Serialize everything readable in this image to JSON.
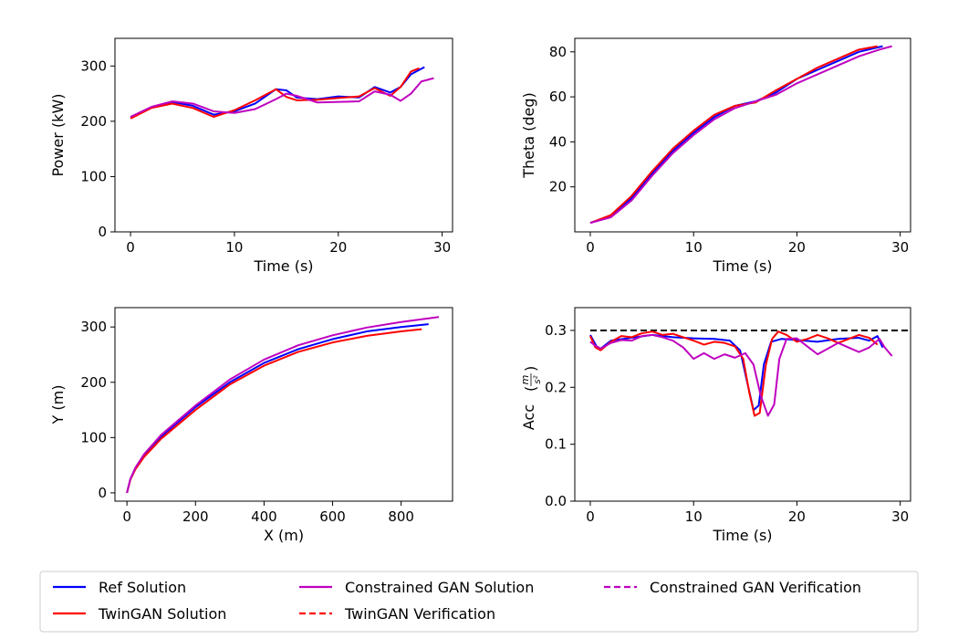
{
  "colors": {
    "ref": "#0000ff",
    "twingan": "#ff0000",
    "cgan": "#bf00bf",
    "limit": "#000000"
  },
  "legend": {
    "placement": "bottom",
    "items": [
      {
        "label": "Ref Solution",
        "color": "#0000ff",
        "dash": false
      },
      {
        "label": "Constrained GAN Solution",
        "color": "#bf00bf",
        "dash": false
      },
      {
        "label": "Constrained GAN Verification",
        "color": "#bf00bf",
        "dash": true
      },
      {
        "label": "TwinGAN Solution",
        "color": "#ff0000",
        "dash": false
      },
      {
        "label": "TwinGAN Verification",
        "color": "#ff0000",
        "dash": true
      }
    ]
  },
  "chart_data": [
    {
      "type": "line",
      "xlabel": "Time (s)",
      "ylabel": "Power (kW)",
      "xlim": [
        -1.5,
        31
      ],
      "ylim": [
        0,
        350
      ],
      "xticks": [
        0,
        10,
        20,
        30
      ],
      "yticks": [
        0,
        100,
        200,
        300
      ],
      "series": [
        {
          "color": "#0000ff",
          "dash": false,
          "points": [
            [
              0,
              207
            ],
            [
              2,
              225
            ],
            [
              4,
              235
            ],
            [
              6,
              228
            ],
            [
              8,
              212
            ],
            [
              10,
              218
            ],
            [
              12,
              232
            ],
            [
              14,
              258
            ],
            [
              15,
              256
            ],
            [
              16,
              243
            ],
            [
              18,
              240
            ],
            [
              20,
              245
            ],
            [
              22,
              243
            ],
            [
              23.5,
              262
            ],
            [
              25,
              252
            ],
            [
              26,
              262
            ],
            [
              27,
              285
            ],
            [
              28.3,
              298
            ]
          ]
        },
        {
          "color": "#ff0000",
          "dash": false,
          "points": [
            [
              0,
              205
            ],
            [
              2,
              224
            ],
            [
              4,
              232
            ],
            [
              6,
              224
            ],
            [
              8,
              208
            ],
            [
              10,
              220
            ],
            [
              12,
              238
            ],
            [
              14,
              258
            ],
            [
              15,
              244
            ],
            [
              16,
              238
            ],
            [
              18,
              239
            ],
            [
              20,
              242
            ],
            [
              22,
              245
            ],
            [
              23.5,
              260
            ],
            [
              25,
              246
            ],
            [
              26,
              262
            ],
            [
              27,
              290
            ],
            [
              27.8,
              296
            ]
          ]
        },
        {
          "color": "#bf00bf",
          "dash": false,
          "points": [
            [
              0,
              208
            ],
            [
              2,
              226
            ],
            [
              4,
              236
            ],
            [
              6,
              232
            ],
            [
              8,
              218
            ],
            [
              10,
              215
            ],
            [
              12,
              222
            ],
            [
              14,
              240
            ],
            [
              15,
              250
            ],
            [
              16,
              246
            ],
            [
              18,
              234
            ],
            [
              20,
              235
            ],
            [
              22,
              236
            ],
            [
              23.5,
              254
            ],
            [
              25,
              248
            ],
            [
              26,
              237
            ],
            [
              27,
              250
            ],
            [
              28,
              272
            ],
            [
              29.2,
              278
            ]
          ]
        }
      ]
    },
    {
      "type": "line",
      "xlabel": "Time (s)",
      "ylabel": "Theta (deg)",
      "xlim": [
        -1.5,
        31
      ],
      "ylim": [
        0,
        86
      ],
      "xticks": [
        0,
        10,
        20,
        30
      ],
      "yticks": [
        20,
        40,
        60,
        80
      ],
      "series": [
        {
          "color": "#0000ff",
          "dash": false,
          "points": [
            [
              0,
              4
            ],
            [
              2,
              7
            ],
            [
              4,
              15
            ],
            [
              6,
              26
            ],
            [
              8,
              36
            ],
            [
              10,
              44
            ],
            [
              12,
              51
            ],
            [
              14,
              56
            ],
            [
              16,
              58
            ],
            [
              18,
              62
            ],
            [
              20,
              68
            ],
            [
              22,
              72
            ],
            [
              24,
              76
            ],
            [
              26,
              80
            ],
            [
              28.3,
              82.5
            ]
          ]
        },
        {
          "color": "#ff0000",
          "dash": false,
          "points": [
            [
              0,
              4
            ],
            [
              2,
              7.5
            ],
            [
              4,
              16
            ],
            [
              6,
              27
            ],
            [
              8,
              37
            ],
            [
              10,
              45
            ],
            [
              12,
              52
            ],
            [
              14,
              56
            ],
            [
              16,
              57.5
            ],
            [
              18,
              63
            ],
            [
              20,
              68
            ],
            [
              22,
              73
            ],
            [
              24,
              77
            ],
            [
              26,
              81
            ],
            [
              27.8,
              82.5
            ]
          ]
        },
        {
          "color": "#bf00bf",
          "dash": false,
          "points": [
            [
              0,
              4
            ],
            [
              2,
              6.5
            ],
            [
              4,
              14
            ],
            [
              6,
              25
            ],
            [
              8,
              35
            ],
            [
              10,
              43
            ],
            [
              12,
              50
            ],
            [
              14,
              55
            ],
            [
              16,
              58
            ],
            [
              18,
              61
            ],
            [
              20,
              66
            ],
            [
              22,
              70
            ],
            [
              24,
              74
            ],
            [
              26,
              78
            ],
            [
              28,
              81
            ],
            [
              29.2,
              82.5
            ]
          ]
        }
      ]
    },
    {
      "type": "line",
      "xlabel": "X (m)",
      "ylabel": "Y (m)",
      "xlim": [
        -35,
        950
      ],
      "ylim": [
        -15,
        335
      ],
      "xticks": [
        0,
        200,
        400,
        600,
        800
      ],
      "yticks": [
        0,
        100,
        200,
        300
      ],
      "series": [
        {
          "color": "#0000ff",
          "dash": false,
          "points": [
            [
              0,
              0
            ],
            [
              10,
              25
            ],
            [
              25,
              45
            ],
            [
              50,
              68
            ],
            [
              100,
              102
            ],
            [
              200,
              155
            ],
            [
              300,
              200
            ],
            [
              400,
              235
            ],
            [
              500,
              260
            ],
            [
              600,
              278
            ],
            [
              700,
              292
            ],
            [
              800,
              300
            ],
            [
              880,
              305
            ]
          ]
        },
        {
          "color": "#ff0000",
          "dash": false,
          "points": [
            [
              0,
              0
            ],
            [
              10,
              24
            ],
            [
              25,
              43
            ],
            [
              50,
              65
            ],
            [
              100,
              98
            ],
            [
              200,
              150
            ],
            [
              300,
              196
            ],
            [
              400,
              230
            ],
            [
              500,
              255
            ],
            [
              600,
              272
            ],
            [
              700,
              284
            ],
            [
              800,
              292
            ],
            [
              860,
              296
            ]
          ]
        },
        {
          "color": "#bf00bf",
          "dash": false,
          "points": [
            [
              0,
              0
            ],
            [
              10,
              25
            ],
            [
              25,
              46
            ],
            [
              50,
              70
            ],
            [
              100,
              105
            ],
            [
              200,
              158
            ],
            [
              300,
              205
            ],
            [
              400,
              241
            ],
            [
              500,
              267
            ],
            [
              600,
              285
            ],
            [
              700,
              299
            ],
            [
              800,
              309
            ],
            [
              910,
              318
            ]
          ]
        }
      ]
    },
    {
      "type": "line",
      "xlabel": "Time (s)",
      "ylabel": "Acc",
      "ylabel_fraction": {
        "numerator": "m",
        "denominator": "s²"
      },
      "xlim": [
        -1.5,
        31
      ],
      "ylim": [
        0,
        0.34
      ],
      "xticks": [
        0,
        10,
        20,
        30
      ],
      "yticks": [
        0.0,
        0.1,
        0.2,
        0.3
      ],
      "series": [
        {
          "color": "#000000",
          "dash": true,
          "points": [
            [
              0,
              0.3
            ],
            [
              31,
              0.3
            ]
          ]
        },
        {
          "color": "#0000ff",
          "dash": false,
          "points": [
            [
              0,
              0.292
            ],
            [
              0.6,
              0.272
            ],
            [
              1,
              0.268
            ],
            [
              2,
              0.282
            ],
            [
              4,
              0.287
            ],
            [
              6,
              0.292
            ],
            [
              8,
              0.288
            ],
            [
              10,
              0.286
            ],
            [
              12,
              0.285
            ],
            [
              13.5,
              0.282
            ],
            [
              14.5,
              0.265
            ],
            [
              15.3,
              0.2
            ],
            [
              15.8,
              0.16
            ],
            [
              16.3,
              0.168
            ],
            [
              16.8,
              0.24
            ],
            [
              17.5,
              0.28
            ],
            [
              18.5,
              0.285
            ],
            [
              20,
              0.283
            ],
            [
              22,
              0.28
            ],
            [
              24,
              0.285
            ],
            [
              26,
              0.287
            ],
            [
              27,
              0.282
            ],
            [
              27.8,
              0.29
            ],
            [
              28.3,
              0.27
            ]
          ]
        },
        {
          "color": "#ff0000",
          "dash": false,
          "points": [
            [
              0,
              0.29
            ],
            [
              0.5,
              0.27
            ],
            [
              1,
              0.265
            ],
            [
              2,
              0.28
            ],
            [
              3,
              0.29
            ],
            [
              4,
              0.288
            ],
            [
              5,
              0.295
            ],
            [
              6,
              0.298
            ],
            [
              7,
              0.292
            ],
            [
              8,
              0.294
            ],
            [
              9,
              0.288
            ],
            [
              10,
              0.282
            ],
            [
              11,
              0.275
            ],
            [
              12,
              0.28
            ],
            [
              13,
              0.278
            ],
            [
              14,
              0.272
            ],
            [
              14.8,
              0.25
            ],
            [
              15.4,
              0.19
            ],
            [
              15.9,
              0.15
            ],
            [
              16.4,
              0.155
            ],
            [
              17,
              0.24
            ],
            [
              17.6,
              0.285
            ],
            [
              18.2,
              0.298
            ],
            [
              19,
              0.292
            ],
            [
              20,
              0.28
            ],
            [
              21,
              0.285
            ],
            [
              22,
              0.292
            ],
            [
              23,
              0.286
            ],
            [
              24,
              0.278
            ],
            [
              25,
              0.285
            ],
            [
              26,
              0.292
            ],
            [
              27,
              0.287
            ],
            [
              27.8,
              0.275
            ]
          ]
        },
        {
          "color": "#bf00bf",
          "dash": false,
          "points": [
            [
              0,
              0.28
            ],
            [
              0.5,
              0.273
            ],
            [
              1,
              0.268
            ],
            [
              2,
              0.278
            ],
            [
              3,
              0.283
            ],
            [
              4,
              0.282
            ],
            [
              5,
              0.29
            ],
            [
              6,
              0.292
            ],
            [
              7,
              0.288
            ],
            [
              8,
              0.282
            ],
            [
              9,
              0.27
            ],
            [
              10,
              0.25
            ],
            [
              11,
              0.26
            ],
            [
              12,
              0.25
            ],
            [
              13,
              0.258
            ],
            [
              14,
              0.252
            ],
            [
              15,
              0.26
            ],
            [
              15.8,
              0.24
            ],
            [
              16.5,
              0.185
            ],
            [
              17.2,
              0.15
            ],
            [
              17.8,
              0.17
            ],
            [
              18.3,
              0.25
            ],
            [
              19,
              0.285
            ],
            [
              20,
              0.286
            ],
            [
              21,
              0.272
            ],
            [
              22,
              0.258
            ],
            [
              23,
              0.268
            ],
            [
              24,
              0.278
            ],
            [
              25,
              0.27
            ],
            [
              26,
              0.262
            ],
            [
              27,
              0.27
            ],
            [
              28,
              0.285
            ],
            [
              28.5,
              0.27
            ],
            [
              29.2,
              0.255
            ]
          ]
        }
      ]
    }
  ]
}
